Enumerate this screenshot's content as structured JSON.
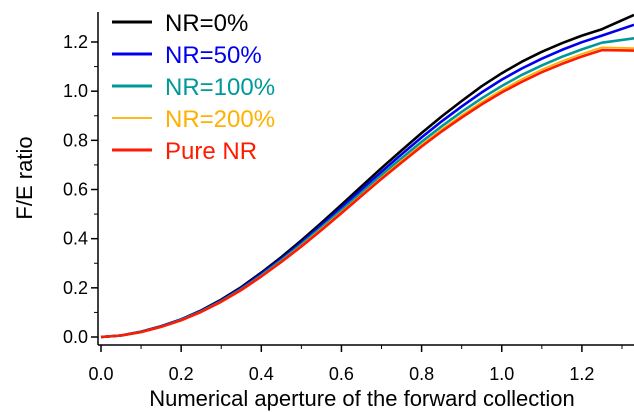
{
  "chart_data": {
    "type": "line",
    "title": "",
    "xlabel": "Numerical aperture of the forward collection",
    "ylabel": "F/E ratio",
    "xlim": [
      0.0,
      1.33
    ],
    "ylim": [
      0.0,
      1.3
    ],
    "x_ticks": [
      0.0,
      0.2,
      0.4,
      0.6,
      0.8,
      1.0,
      1.2
    ],
    "x_tick_labels": [
      "0.0",
      "0.2",
      "0.4",
      "0.6",
      "0.8",
      "1.0",
      "1.2"
    ],
    "y_ticks": [
      0.0,
      0.2,
      0.4,
      0.6,
      0.8,
      1.0,
      1.2
    ],
    "y_tick_labels": [
      "0.0",
      "0.2",
      "0.4",
      "0.6",
      "0.8",
      "1.0",
      "1.2"
    ],
    "grid": false,
    "legend_position": "top-left",
    "x": [
      0.0,
      0.05,
      0.1,
      0.15,
      0.2,
      0.25,
      0.3,
      0.35,
      0.4,
      0.45,
      0.5,
      0.55,
      0.6,
      0.65,
      0.7,
      0.75,
      0.8,
      0.85,
      0.9,
      0.95,
      1.0,
      1.05,
      1.1,
      1.15,
      1.2,
      1.25,
      1.33
    ],
    "series": [
      {
        "name": "NR=0%",
        "color": "#000000",
        "values": [
          0.0,
          0.006,
          0.022,
          0.044,
          0.072,
          0.108,
          0.152,
          0.203,
          0.262,
          0.325,
          0.393,
          0.464,
          0.538,
          0.613,
          0.687,
          0.759,
          0.83,
          0.897,
          0.96,
          1.02,
          1.073,
          1.12,
          1.16,
          1.195,
          1.226,
          1.252,
          1.31
        ]
      },
      {
        "name": "NR=50%",
        "color": "#0000ee",
        "values": [
          0.0,
          0.006,
          0.021,
          0.043,
          0.071,
          0.106,
          0.149,
          0.199,
          0.257,
          0.318,
          0.385,
          0.455,
          0.527,
          0.6,
          0.672,
          0.743,
          0.812,
          0.877,
          0.938,
          0.995,
          1.047,
          1.092,
          1.132,
          1.168,
          1.199,
          1.226,
          1.27
        ]
      },
      {
        "name": "NR=100%",
        "color": "#009999",
        "values": [
          0.0,
          0.006,
          0.021,
          0.042,
          0.07,
          0.104,
          0.146,
          0.195,
          0.251,
          0.312,
          0.377,
          0.446,
          0.516,
          0.587,
          0.658,
          0.727,
          0.794,
          0.857,
          0.916,
          0.971,
          1.021,
          1.066,
          1.105,
          1.14,
          1.17,
          1.197,
          1.215
        ]
      },
      {
        "name": "NR=200%",
        "color": "#ffb000",
        "values": [
          0.0,
          0.006,
          0.02,
          0.041,
          0.069,
          0.103,
          0.144,
          0.193,
          0.248,
          0.308,
          0.372,
          0.44,
          0.509,
          0.579,
          0.649,
          0.717,
          0.782,
          0.844,
          0.902,
          0.956,
          1.005,
          1.049,
          1.088,
          1.122,
          1.152,
          1.178,
          1.175
        ]
      },
      {
        "name": "Pure NR",
        "color": "#ff1a00",
        "values": [
          0.0,
          0.006,
          0.02,
          0.041,
          0.068,
          0.102,
          0.143,
          0.191,
          0.246,
          0.305,
          0.368,
          0.435,
          0.504,
          0.574,
          0.643,
          0.71,
          0.775,
          0.836,
          0.893,
          0.946,
          0.995,
          1.038,
          1.077,
          1.111,
          1.141,
          1.167,
          1.165
        ]
      }
    ]
  }
}
